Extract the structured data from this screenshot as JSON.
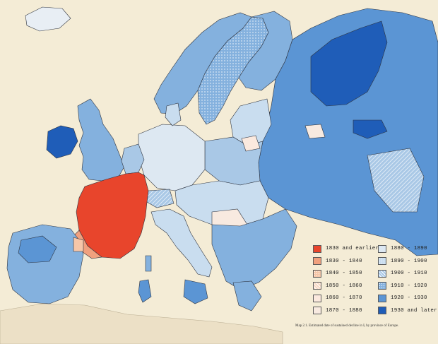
{
  "map": {
    "colors": {
      "sea": "#f4ecd6",
      "land_outside": "#ece0c6",
      "border": "#2e3440",
      "c1830": "#e8452c",
      "c1830_1840": "#f0a07e",
      "c1840_1850": "#f6c6a8",
      "c1850_1860": "#f7d8c4",
      "c1860_1870": "#fbe9de",
      "c1870_1880": "#f8eae0",
      "c1880_1890": "#dde8f2",
      "c1890_1900": "#c9ddef",
      "c1900_1910": "#a9c8e6",
      "c1910_1920": "#84b1de",
      "c1920_1930": "#5b95d4",
      "c1930_later": "#1f5db8"
    },
    "legend": {
      "left_column": [
        {
          "label": "1830 and earlier",
          "color": "#e8452c",
          "pattern": "solid"
        },
        {
          "label": "1830  -  1840",
          "color": "#f0a07e",
          "pattern": "solid"
        },
        {
          "label": "1840  -  1850",
          "color": "#f6c6a8",
          "pattern": "dots"
        },
        {
          "label": "1850  -  1860",
          "color": "#f7d8c4",
          "pattern": "hatch"
        },
        {
          "label": "1860  -  1870",
          "color": "#fbe9de",
          "pattern": "solid"
        },
        {
          "label": "1870  -  1880",
          "color": "#f8eae0",
          "pattern": "solid"
        }
      ],
      "right_column": [
        {
          "label": "1880  -  1890",
          "color": "#dde8f2",
          "pattern": "solid"
        },
        {
          "label": "1890  -  1900",
          "color": "#c9ddef",
          "pattern": "dots"
        },
        {
          "label": "1900  -  1910",
          "color": "#a9c8e6",
          "pattern": "hatch"
        },
        {
          "label": "1910  -  1920",
          "color": "#84b1de",
          "pattern": "dots"
        },
        {
          "label": "1920  -  1930",
          "color": "#5b95d4",
          "pattern": "solid"
        },
        {
          "label": "1930 and later",
          "color": "#1f5db8",
          "pattern": "solid"
        }
      ]
    },
    "caption": "Map 2.1.  Estimated date of sustained decline in Iₑ by province of Europe."
  }
}
